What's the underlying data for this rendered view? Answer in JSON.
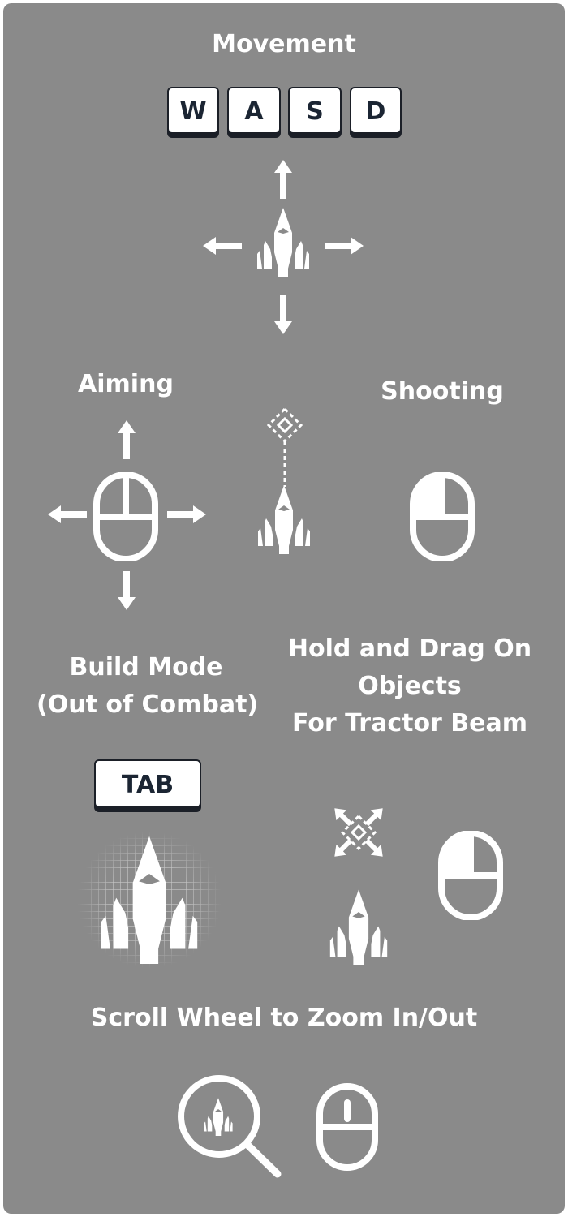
{
  "sections": {
    "movement": {
      "title": "Movement",
      "keys": [
        "W",
        "A",
        "S",
        "D"
      ]
    },
    "aiming": {
      "title": "Aiming"
    },
    "shooting": {
      "title": "Shooting"
    },
    "build_mode": {
      "title_line1": "Build Mode",
      "title_line2": "(Out of Combat)",
      "key": "TAB"
    },
    "tractor_beam": {
      "line1": "Hold and Drag On",
      "line2": "Objects",
      "line3": "For Tractor Beam"
    },
    "zoom": {
      "title": "Scroll Wheel to Zoom In/Out"
    }
  },
  "colors": {
    "background": "#8a8a8a",
    "foreground": "#ffffff",
    "key_text": "#1b2533"
  },
  "icons": [
    "spaceship-icon",
    "arrow-up-icon",
    "arrow-down-icon",
    "arrow-left-icon",
    "arrow-right-icon",
    "mouse-icon",
    "mouse-left-click-icon",
    "mouse-scroll-wheel-icon",
    "crosshair-target-icon",
    "grid-build-icon",
    "magnifier-zoom-icon"
  ]
}
